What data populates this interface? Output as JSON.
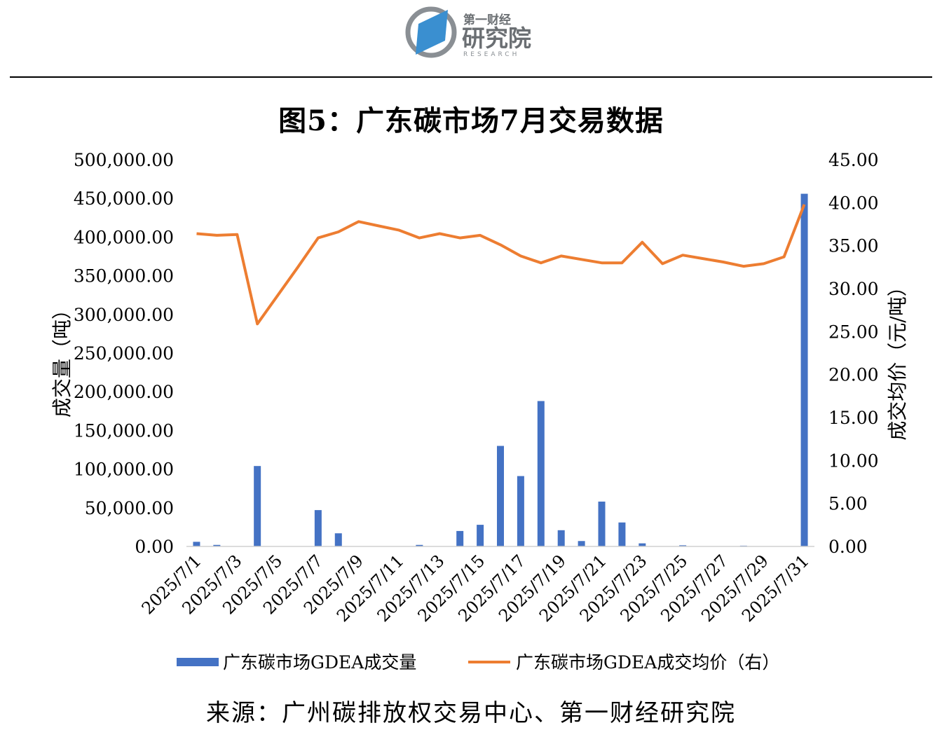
{
  "header": {
    "brand_small": "第一财经",
    "brand_large": "研究院",
    "brand_en": "RESEARCH"
  },
  "footer": {
    "source": "来源：广州碳排放权交易中心、第一财经研究院"
  },
  "colors": {
    "bar": "#4472C4",
    "line": "#ED7D31",
    "logo_blue": "#3A8FD0",
    "logo_gray": "#8A8F94"
  },
  "chart_data": {
    "type": "bar",
    "title": "图5：广东碳市场7月交易数据",
    "ylabel": "成交量（吨）",
    "y2label": "成交均价（元/吨）",
    "ylim": [
      0,
      500000
    ],
    "y2lim": [
      0,
      45
    ],
    "yticks": [
      "0.00",
      "50,000.00",
      "100,000.00",
      "150,000.00",
      "200,000.00",
      "250,000.00",
      "300,000.00",
      "350,000.00",
      "400,000.00",
      "450,000.00",
      "500,000.00"
    ],
    "y2ticks": [
      "0.00",
      "5.00",
      "10.00",
      "15.00",
      "20.00",
      "25.00",
      "30.00",
      "35.00",
      "40.00",
      "45.00"
    ],
    "legend_position": "bottom",
    "grid": false,
    "categories": [
      "2025/7/1",
      "2025/7/2",
      "2025/7/3",
      "2025/7/4",
      "2025/7/5",
      "2025/7/6",
      "2025/7/7",
      "2025/7/8",
      "2025/7/9",
      "2025/7/10",
      "2025/7/11",
      "2025/7/12",
      "2025/7/13",
      "2025/7/14",
      "2025/7/15",
      "2025/7/16",
      "2025/7/17",
      "2025/7/18",
      "2025/7/19",
      "2025/7/20",
      "2025/7/21",
      "2025/7/22",
      "2025/7/23",
      "2025/7/24",
      "2025/7/25",
      "2025/7/26",
      "2025/7/27",
      "2025/7/28",
      "2025/7/29",
      "2025/7/30",
      "2025/7/31"
    ],
    "tick_labels": [
      "2025/7/1",
      "2025/7/3",
      "2025/7/5",
      "2025/7/7",
      "2025/7/9",
      "2025/7/11",
      "2025/7/13",
      "2025/7/15",
      "2025/7/17",
      "2025/7/19",
      "2025/7/21",
      "2025/7/23",
      "2025/7/25",
      "2025/7/27",
      "2025/7/29",
      "2025/7/31"
    ],
    "series": [
      {
        "name": "广东碳市场GDEA成交量",
        "type": "bar",
        "axis": "left",
        "values": [
          6000,
          2000,
          0,
          104000,
          0,
          0,
          47000,
          17000,
          0,
          0,
          0,
          2000,
          0,
          20000,
          28000,
          130000,
          91000,
          188000,
          21000,
          7000,
          58000,
          31000,
          4000,
          0,
          1500,
          0,
          0,
          1000,
          0,
          0,
          456000
        ]
      },
      {
        "name": "广东碳市场GDEA成交均价（右）",
        "type": "line",
        "axis": "right",
        "values": [
          36.4,
          36.2,
          36.3,
          25.9,
          29.2,
          32.5,
          35.9,
          36.6,
          37.8,
          37.3,
          36.8,
          35.9,
          36.4,
          35.9,
          36.2,
          35.1,
          33.8,
          33.0,
          33.8,
          33.4,
          33.0,
          33.0,
          35.4,
          32.9,
          33.9,
          33.5,
          33.1,
          32.6,
          32.9,
          33.7,
          39.8
        ]
      }
    ]
  }
}
